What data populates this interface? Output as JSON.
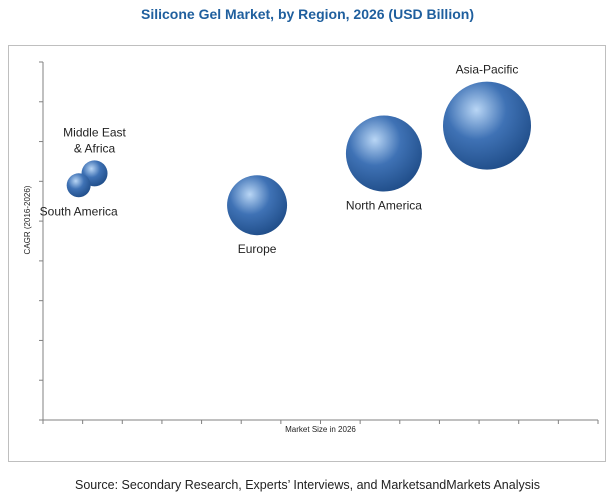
{
  "title": "Silicone Gel Market, by Region, 2026 (USD Billion)",
  "source": "Source: Secondary Research, Experts’ Interviews, and MarketsandMarkets Analysis",
  "colors": {
    "title": "#1f5f9e",
    "bubble": "#3f72b5",
    "bubble_dark": "#1d4a85",
    "bubble_light": "#b9d6f5",
    "axis": "#808080",
    "frame": "#bfbfbf"
  },
  "chart_data": {
    "type": "scatter",
    "title": "Silicone Gel Market, by Region, 2026 (USD Billion)",
    "xlabel": "Market Size in 2026",
    "ylabel": "CAGR (2016-2026)",
    "xlim": [
      0,
      14
    ],
    "ylim": [
      0,
      9
    ],
    "x_ticks": 14,
    "y_ticks": 9,
    "grid": false,
    "series": [
      {
        "name": "Asia-Pacific",
        "label_lines": [
          "Asia-Pacific"
        ],
        "x": 11.2,
        "y": 7.4,
        "size": 4.4,
        "label_pos": "above"
      },
      {
        "name": "North America",
        "label_lines": [
          "North America"
        ],
        "x": 8.6,
        "y": 6.7,
        "size": 3.8,
        "label_pos": "below"
      },
      {
        "name": "Europe",
        "label_lines": [
          "Europe"
        ],
        "x": 5.4,
        "y": 5.4,
        "size": 3.0,
        "label_pos": "below"
      },
      {
        "name": "Middle East & Africa",
        "label_lines": [
          "Middle East",
          "& Africa"
        ],
        "x": 1.3,
        "y": 6.2,
        "size": 1.3,
        "label_pos": "above"
      },
      {
        "name": "South America",
        "label_lines": [
          "South America"
        ],
        "x": 0.9,
        "y": 5.9,
        "size": 1.2,
        "label_pos": "below"
      }
    ]
  }
}
